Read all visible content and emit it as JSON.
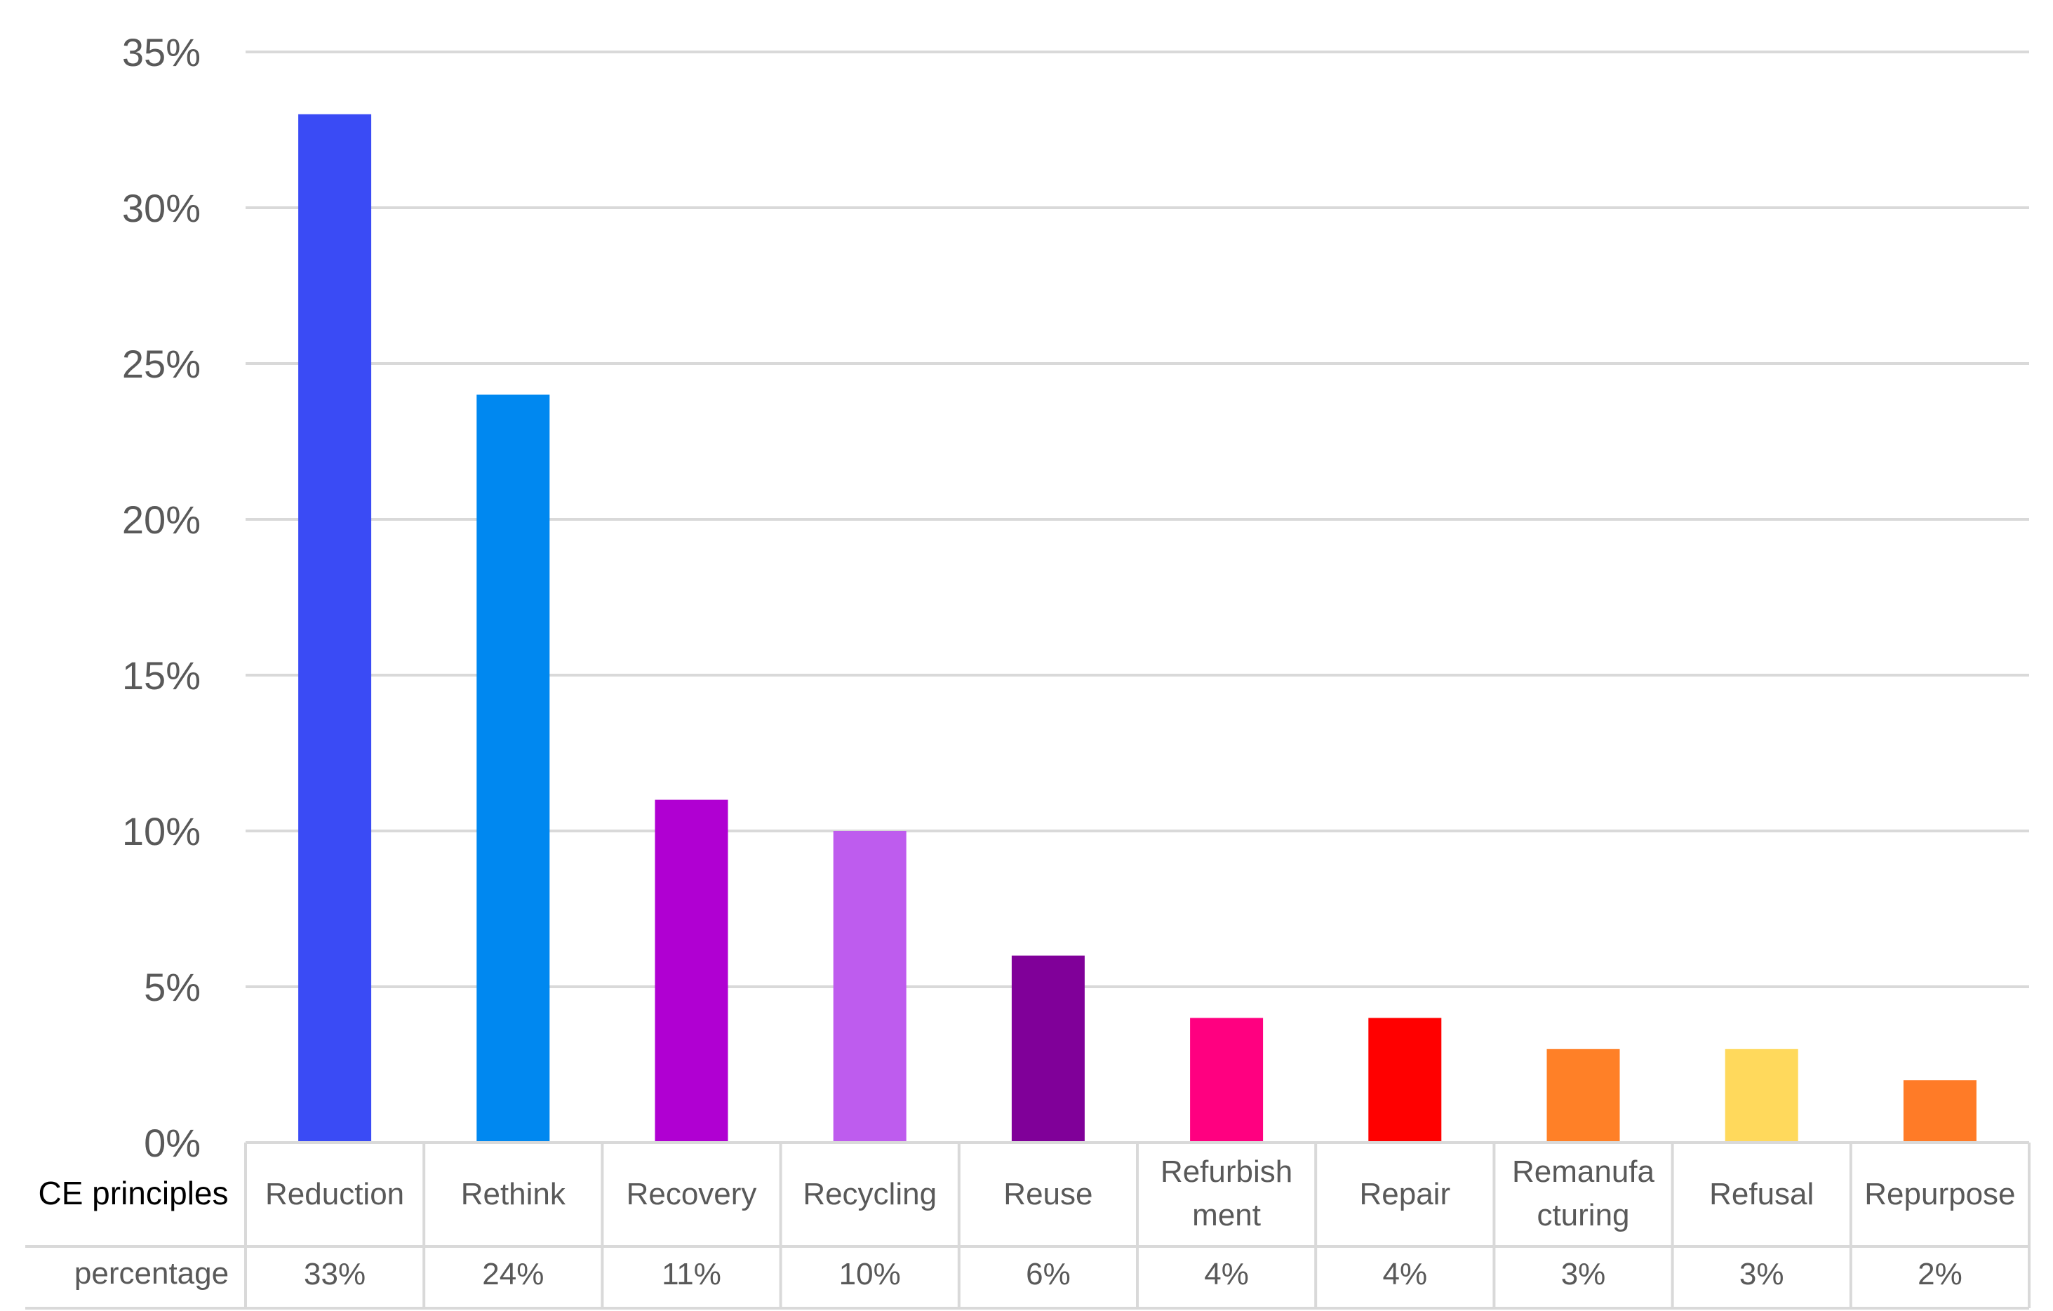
{
  "chart_data": {
    "type": "bar",
    "title": "",
    "xlabel": "",
    "ylabel": "",
    "ylim": [
      0,
      35
    ],
    "yticks": [
      0,
      5,
      10,
      15,
      20,
      25,
      30,
      35
    ],
    "ytick_labels": [
      "0%",
      "5%",
      "10%",
      "15%",
      "20%",
      "25%",
      "30%",
      "35%"
    ],
    "grid": true,
    "legend": "none",
    "data_table": {
      "row_header_categories": "CE principles",
      "row_header_values": "percentage"
    },
    "categories": [
      [
        "Reduction"
      ],
      [
        "Rethink"
      ],
      [
        "Recovery"
      ],
      [
        "Recycling"
      ],
      [
        "Reuse"
      ],
      [
        "Refurbish",
        "ment"
      ],
      [
        "Repair"
      ],
      [
        "Remanufa",
        "cturing"
      ],
      [
        "Refusal"
      ],
      [
        "Repurpose"
      ]
    ],
    "values": [
      33,
      24,
      11,
      10,
      6,
      4,
      4,
      3,
      3,
      2
    ],
    "value_labels": [
      "33%",
      "24%",
      "11%",
      "10%",
      "6%",
      "4%",
      "4%",
      "3%",
      "3%",
      "2%"
    ],
    "colors": [
      "#3A4BF5",
      "#0088F0",
      "#B000D2",
      "#BE5CEE",
      "#800099",
      "#FF0080",
      "#FF0000",
      "#FF8027",
      "#FFD95C",
      "#FF7B27"
    ]
  }
}
